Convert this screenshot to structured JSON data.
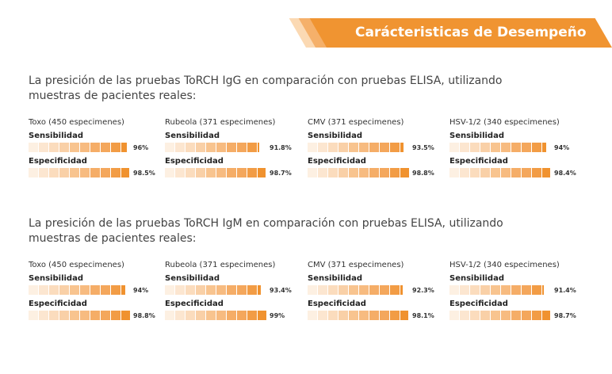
{
  "header": {
    "title": "Carácteristicas de Desempeño"
  },
  "colors": {
    "accent": "#f09431",
    "segments": [
      "#fdf0e2",
      "#fce6d0",
      "#fbdcbd",
      "#f9d0a7",
      "#f8c48f",
      "#f7bb80",
      "#f5ad67",
      "#f4a75c",
      "#f29c45",
      "#f0922f"
    ]
  },
  "sections": [
    {
      "intro": "La presición de las pruebas ToRCH IgG en comparación con pruebas ELISA, utilizando muestras de pacientes reales:",
      "columns": [
        {
          "title": "Toxo  (450 especimenes)",
          "sens_label": "Sensibilidad",
          "sens": 96,
          "sens_text": "96%",
          "spec_label": "Especificidad",
          "spec": 98.5,
          "spec_text": "98.5%"
        },
        {
          "title": "Rubeola (371 especimenes)",
          "sens_label": "Sensibilidad",
          "sens": 91.8,
          "sens_text": "91.8%",
          "spec_label": "Especificidad",
          "spec": 98.7,
          "spec_text": "98.7%"
        },
        {
          "title": "CMV (371 especimenes)",
          "sens_label": "Sensibilidad",
          "sens": 93.5,
          "sens_text": "93.5%",
          "spec_label": "Especificidad",
          "spec": 98.8,
          "spec_text": "98.8%"
        },
        {
          "title": "HSV-1/2 (340 especimenes)",
          "sens_label": "Sensibilidad",
          "sens": 94,
          "sens_text": "94%",
          "spec_label": "Especificidad",
          "spec": 98.4,
          "spec_text": "98.4%"
        }
      ]
    },
    {
      "intro": "La presición de las pruebas ToRCH IgM en comparación con pruebas ELISA, utilizando muestras de pacientes reales:",
      "columns": [
        {
          "title": "Toxo  (450 especimenes)",
          "sens_label": "Sensibilidad",
          "sens": 94,
          "sens_text": "94%",
          "spec_label": "Especificidad",
          "spec": 98.8,
          "spec_text": "98.8%"
        },
        {
          "title": "Rubeola (371 especimenes)",
          "sens_label": "Sensibilidad",
          "sens": 93.4,
          "sens_text": "93.4%",
          "spec_label": "Especificidad",
          "spec": 99,
          "spec_text": "99%"
        },
        {
          "title": "CMV (371 especimenes)",
          "sens_label": "Sensibilidad",
          "sens": 92.3,
          "sens_text": "92.3%",
          "spec_label": "Especificidad",
          "spec": 98.1,
          "spec_text": "98.1%"
        },
        {
          "title": "HSV-1/2 (340 especimenes)",
          "sens_label": "Sensibilidad",
          "sens": 91.4,
          "sens_text": "91.4%",
          "spec_label": "Especificidad",
          "spec": 98.7,
          "spec_text": "98.7%"
        }
      ]
    }
  ]
}
